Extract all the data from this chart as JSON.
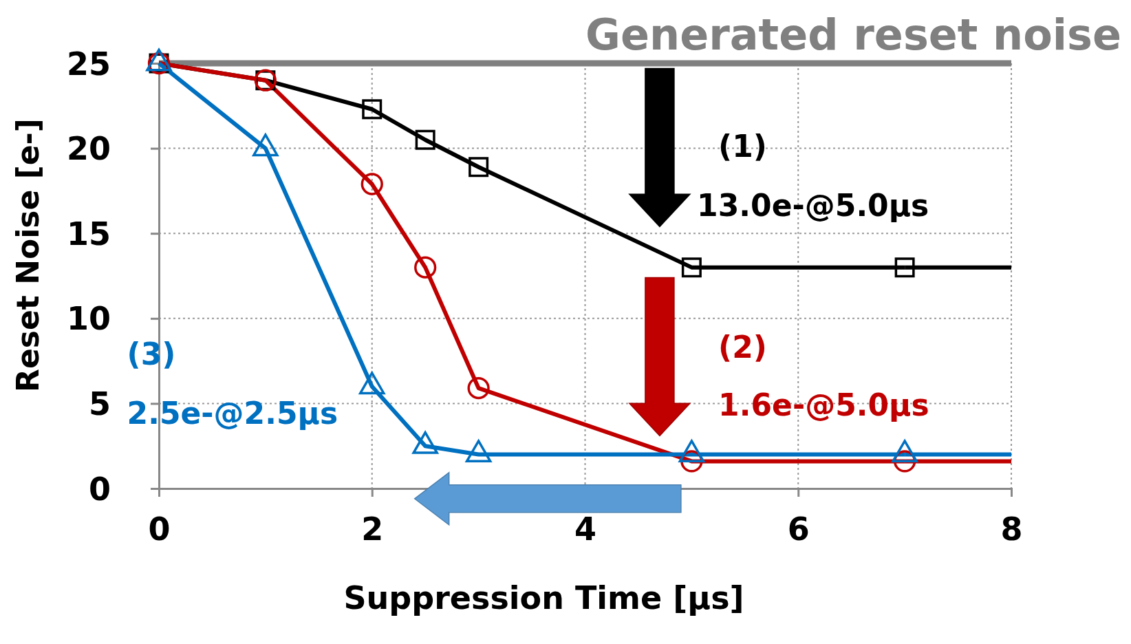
{
  "chart_data": {
    "type": "line",
    "xlabel": "Suppression Time [μs]",
    "ylabel": "Reset Noise [e-]",
    "xlim": [
      0,
      8
    ],
    "xticks": [
      0,
      2,
      4,
      6,
      8
    ],
    "ylim": [
      0,
      25
    ],
    "yticks": [
      0,
      5,
      10,
      15,
      20,
      25
    ],
    "grid": true,
    "line_style": "solid",
    "series": [
      {
        "color": "#000000",
        "marker": "square",
        "x": [
          0,
          1,
          2,
          2.5,
          3,
          5,
          7
        ],
        "values": [
          25,
          24,
          22.3,
          20.5,
          18.9,
          13,
          13
        ]
      },
      {
        "color": "#c00000",
        "marker": "circle",
        "x": [
          0,
          1,
          2,
          2.5,
          3,
          5,
          7
        ],
        "values": [
          25,
          24,
          17.9,
          13,
          5.9,
          1.6,
          1.6
        ]
      },
      {
        "color": "#0070c0",
        "marker": "triangle",
        "x": [
          0,
          1,
          2,
          2.5,
          3,
          5,
          7
        ],
        "values": [
          25,
          20,
          6,
          2.5,
          2,
          2,
          2
        ]
      },
      {
        "color": "#000000",
        "marker": "none",
        "x": [
          7,
          8
        ],
        "values": [
          13,
          13
        ]
      },
      {
        "color": "#c00000",
        "marker": "none",
        "x": [
          7,
          8
        ],
        "values": [
          1.6,
          1.6
        ]
      },
      {
        "color": "#0070c0",
        "marker": "none",
        "x": [
          7,
          8
        ],
        "values": [
          2,
          2
        ]
      }
    ],
    "ref_lines": [
      {
        "axis": "y",
        "value": 25,
        "label": "Generated reset noise",
        "color": "#808080"
      }
    ],
    "annotations": [
      "(1)",
      "13.0e-@5.0μs",
      "(2)",
      "1.6e-@5.0μs",
      "(3)",
      "2.5e-@2.5μs"
    ]
  }
}
